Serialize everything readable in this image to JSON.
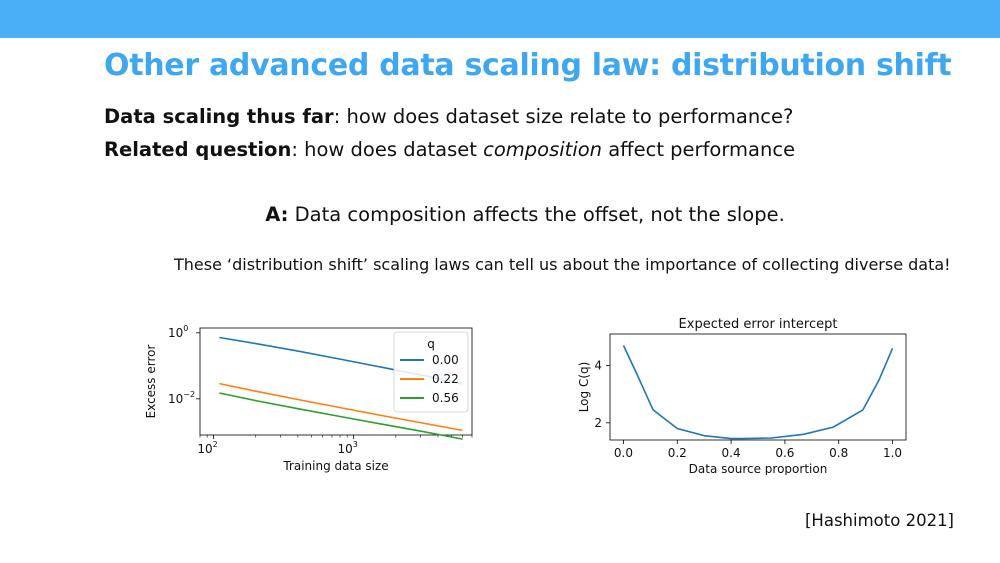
{
  "slide": {
    "title": "Other advanced data scaling law: distribution shift",
    "line1_bold": "Data scaling thus far",
    "line1_rest": ": how does dataset size relate to performance?",
    "line2_bold": "Related question",
    "line2_pre": ": how does dataset ",
    "line2_italic": "composition",
    "line2_post": " affect performance",
    "answer_bold": "A:",
    "answer_rest": " Data composition affects the offset, not the slope.",
    "note": "These ‘distribution shift’ scaling laws can tell us about the importance of collecting diverse data!",
    "citation": "[Hashimoto 2021]"
  },
  "colors": {
    "accent": "#3ea7ef",
    "topbar": "#4aaff5"
  },
  "chart_data": [
    {
      "type": "line",
      "title": "",
      "xlabel": "Training data size",
      "ylabel": "Excess error",
      "xscale": "log",
      "yscale": "log",
      "xlim": [
        80,
        7000
      ],
      "ylim": [
        0.0008,
        1.4
      ],
      "xticks": [
        {
          "value": 100,
          "base": "10",
          "exp": "2"
        },
        {
          "value": 1000,
          "base": "10",
          "exp": "3"
        }
      ],
      "yticks": [
        {
          "value": 1,
          "base": "10",
          "exp": "0"
        },
        {
          "value": 0.01,
          "base": "10",
          "exp": "−2"
        }
      ],
      "legend_title": "q",
      "legend_position": "top-right",
      "series": [
        {
          "name": "0.00",
          "color": "#1f77b4",
          "x": [
            110,
            200,
            400,
            800,
            1600,
            3200,
            6000
          ],
          "y": [
            0.72,
            0.47,
            0.28,
            0.16,
            0.09,
            0.05,
            0.028
          ]
        },
        {
          "name": "0.22",
          "color": "#ff7f0e",
          "x": [
            110,
            200,
            400,
            800,
            1600,
            3200,
            6000
          ],
          "y": [
            0.029,
            0.017,
            0.0095,
            0.0054,
            0.0031,
            0.0018,
            0.0011
          ]
        },
        {
          "name": "0.56",
          "color": "#2ca02c",
          "x": [
            110,
            200,
            400,
            800,
            1600,
            3200,
            6000
          ],
          "y": [
            0.015,
            0.0088,
            0.005,
            0.0029,
            0.0017,
            0.001,
            0.0006
          ]
        }
      ]
    },
    {
      "type": "line",
      "title": "Expected error intercept",
      "xlabel": "Data source proportion",
      "ylabel": "Log C(q)",
      "xlim": [
        -0.05,
        1.05
      ],
      "ylim": [
        1.4,
        5.1
      ],
      "xticks": [
        {
          "value": 0.0,
          "label": "0.0"
        },
        {
          "value": 0.2,
          "label": "0.2"
        },
        {
          "value": 0.4,
          "label": "0.4"
        },
        {
          "value": 0.6,
          "label": "0.6"
        },
        {
          "value": 0.8,
          "label": "0.8"
        },
        {
          "value": 1.0,
          "label": "1.0"
        }
      ],
      "yticks": [
        {
          "value": 2,
          "label": "2"
        },
        {
          "value": 4,
          "label": "4"
        }
      ],
      "series": [
        {
          "color": "#1f77b4",
          "x": [
            0.0,
            0.05,
            0.11,
            0.2,
            0.3,
            0.4,
            0.44,
            0.55,
            0.67,
            0.78,
            0.89,
            0.95,
            1.0
          ],
          "y": [
            4.7,
            3.7,
            2.45,
            1.8,
            1.55,
            1.45,
            1.45,
            1.47,
            1.6,
            1.85,
            2.45,
            3.5,
            4.6
          ]
        }
      ]
    }
  ]
}
